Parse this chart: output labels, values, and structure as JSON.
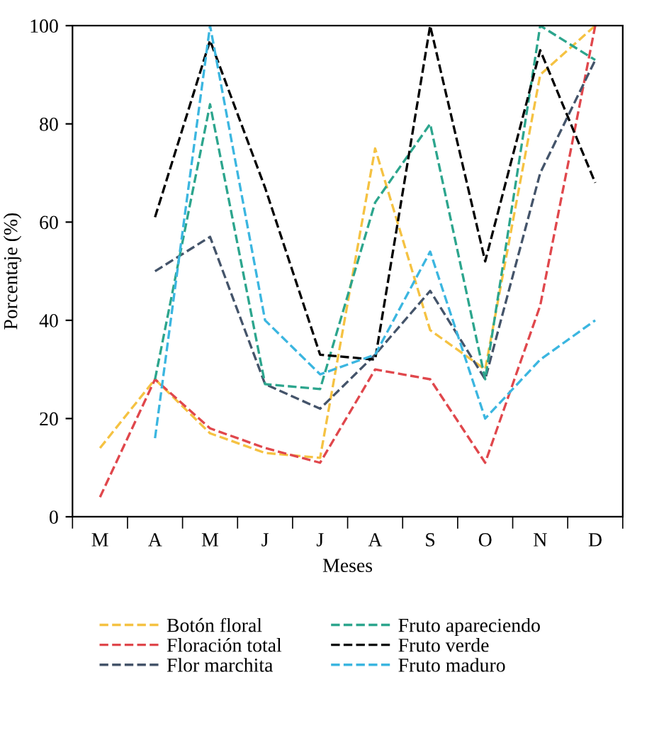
{
  "chart_data": {
    "type": "line",
    "xlabel": "Meses",
    "ylabel": "Porcentaje (%)",
    "categories": [
      "M",
      "A",
      "M",
      "J",
      "J",
      "A",
      "S",
      "O",
      "N",
      "D"
    ],
    "ylim": [
      0,
      100
    ],
    "yticks": [
      0,
      20,
      40,
      60,
      80,
      100
    ],
    "grid": false,
    "legend": "bottom",
    "line_style": "dashed",
    "marker": "none",
    "series": [
      {
        "name": "Botón floral",
        "color": "#f5c242",
        "values": [
          14,
          28,
          17,
          13,
          12,
          75,
          38,
          30,
          90,
          100
        ]
      },
      {
        "name": "Floración total",
        "color": "#e0474c",
        "values": [
          4,
          28,
          18,
          14,
          11,
          30,
          28,
          11,
          43,
          100
        ]
      },
      {
        "name": "Flor marchita",
        "color": "#44546a",
        "values": [
          null,
          50,
          57,
          27,
          22,
          33,
          46,
          28,
          70,
          93
        ]
      },
      {
        "name": "Fruto apareciendo",
        "color": "#2ca58d",
        "values": [
          null,
          28,
          84,
          27,
          26,
          64,
          80,
          28,
          100,
          93
        ]
      },
      {
        "name": "Fruto verde",
        "color": "#000000",
        "values": [
          null,
          61,
          97,
          67,
          33,
          32,
          100,
          52,
          95,
          68
        ]
      },
      {
        "name": "Fruto maduro",
        "color": "#3bb6e0",
        "values": [
          null,
          16,
          100,
          40,
          29,
          33,
          54,
          20,
          32,
          40
        ]
      }
    ]
  }
}
